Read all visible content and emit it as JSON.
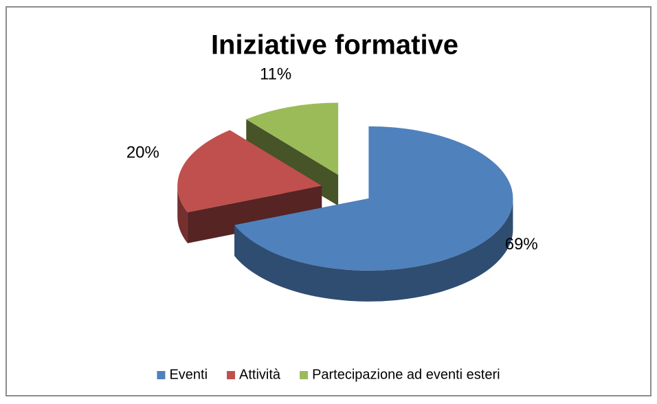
{
  "chart_data": {
    "type": "pie",
    "title": "Iniziative formative",
    "categories": [
      "Eventi",
      "Attività",
      "Partecipazione ad eventi esteri"
    ],
    "values": [
      69,
      20,
      11
    ],
    "value_labels": [
      "69%",
      "20%",
      "11%"
    ],
    "colors": [
      "#4f81bd",
      "#c0504d",
      "#9bbb59"
    ],
    "legend": "bottom",
    "exploded": true,
    "three_d": true
  }
}
